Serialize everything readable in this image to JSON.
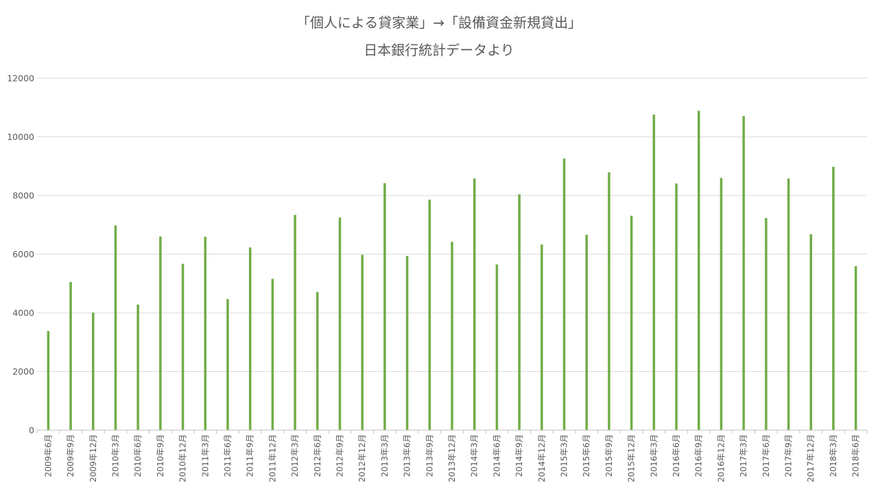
{
  "chart_data": {
    "type": "bar",
    "title": "「個人による貸家業」→「設備資金新規貸出」",
    "subtitle": "日本銀行統計データより",
    "xlabel": "",
    "ylabel": "",
    "ylim": [
      0,
      12000
    ],
    "yticks": [
      0,
      2000,
      4000,
      6000,
      8000,
      10000,
      12000
    ],
    "grid": true,
    "legend": "none",
    "bar_color": "#70ad47",
    "categories": [
      "2009年6月",
      "2009年9月",
      "2009年12月",
      "2010年3月",
      "2010年6月",
      "2010年9月",
      "2010年12月",
      "2011年3月",
      "2011年6月",
      "2011年9月",
      "2011年12月",
      "2012年3月",
      "2012年6月",
      "2012年9月",
      "2012年12月",
      "2013年3月",
      "2013年6月",
      "2013年9月",
      "2013年12月",
      "2014年3月",
      "2014年6月",
      "2014年9月",
      "2014年12月",
      "2015年3月",
      "2015年6月",
      "2015年9月",
      "2015年12月",
      "2016年3月",
      "2016年6月",
      "2016年9月",
      "2016年12月",
      "2017年3月",
      "2017年6月",
      "2017年9月",
      "2017年12月",
      "2018年3月",
      "2018年6月"
    ],
    "values": [
      3380,
      5050,
      4010,
      6980,
      4280,
      6600,
      5670,
      6590,
      4470,
      6230,
      5160,
      7340,
      4710,
      7250,
      5980,
      8420,
      5940,
      7860,
      6420,
      8580,
      5650,
      8040,
      6330,
      9260,
      6660,
      8790,
      7310,
      10760,
      8410,
      10890,
      8600,
      10710,
      7230,
      8580,
      6680,
      8980,
      5590
    ]
  }
}
